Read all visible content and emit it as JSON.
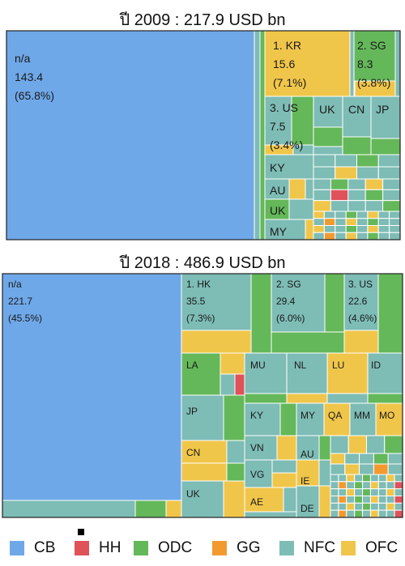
{
  "colors": {
    "CB": "#6fa8e8",
    "HH": "#e0525a",
    "ODC": "#64b85a",
    "GG": "#f29a30",
    "NFC": "#7ebcb6",
    "OFC": "#f0c64a"
  },
  "legend": [
    {
      "key": "CB",
      "label": "CB"
    },
    {
      "key": "HH",
      "label": "HH"
    },
    {
      "key": "ODC",
      "label": "ODC"
    },
    {
      "key": "GG",
      "label": "GG"
    },
    {
      "key": "NFC",
      "label": "NFC"
    },
    {
      "key": "OFC",
      "label": "OFC"
    }
  ],
  "chart_data": [
    {
      "type": "treemap",
      "title": "ปี 2009 : 217.9 USD bn",
      "total_usd_bn": 217.9,
      "cells": [
        {
          "name": "n/a",
          "category": "CB",
          "lines": [
            "n/a",
            "143.4",
            "(65.8%)"
          ],
          "value": 143.4,
          "share": "(65.8%)"
        },
        {
          "name": "1. KR",
          "category": "OFC",
          "lines": [
            "1. KR",
            "15.6",
            "(7.1%)"
          ],
          "value": 15.6,
          "share": "(7.1%)"
        },
        {
          "name": "2. SG",
          "category": "ODC",
          "lines": [
            "2. SG",
            "8.3",
            "(3.8%)"
          ],
          "value": 8.3,
          "share": "(3.8%)"
        },
        {
          "name": "3. US",
          "category": "NFC",
          "lines": [
            "3. US",
            "7.5",
            "(3.4%)"
          ],
          "value": 7.5,
          "share": "(3.4%)"
        },
        {
          "name": "UK",
          "category": "NFC",
          "lines": [
            "UK"
          ]
        },
        {
          "name": "CN",
          "category": "NFC",
          "lines": [
            "CN"
          ]
        },
        {
          "name": "JP",
          "category": "NFC",
          "lines": [
            "JP"
          ]
        },
        {
          "name": "KY",
          "category": "NFC",
          "lines": [
            "KY"
          ]
        },
        {
          "name": "AU",
          "category": "NFC",
          "lines": [
            "AU"
          ]
        },
        {
          "name": "UK",
          "category": "ODC",
          "lines": [
            "UK"
          ]
        },
        {
          "name": "MY",
          "category": "NFC",
          "lines": [
            "MY"
          ]
        }
      ]
    },
    {
      "type": "treemap",
      "title": "ปี 2018 : 486.9 USD bn",
      "total_usd_bn": 486.9,
      "cells": [
        {
          "name": "n/a",
          "category": "CB",
          "lines": [
            "n/a",
            "221.7",
            "(45.5%)"
          ],
          "value": 221.7,
          "share": "(45.5%)"
        },
        {
          "name": "1. HK",
          "category": "NFC",
          "lines": [
            "1. HK",
            "35.5",
            "(7.3%)"
          ],
          "value": 35.5,
          "share": "(7.3%)"
        },
        {
          "name": "2. SG",
          "category": "NFC",
          "lines": [
            "2. SG",
            "29.4",
            "(6.0%)"
          ],
          "value": 29.4,
          "share": "(6.0%)"
        },
        {
          "name": "3. US",
          "category": "NFC",
          "lines": [
            "3. US",
            "22.6",
            "(4.6%)"
          ],
          "value": 22.6,
          "share": "(4.6%)"
        },
        {
          "name": "LA",
          "category": "ODC",
          "lines": [
            "LA"
          ]
        },
        {
          "name": "MU",
          "category": "NFC",
          "lines": [
            "MU"
          ]
        },
        {
          "name": "NL",
          "category": "NFC",
          "lines": [
            "NL"
          ]
        },
        {
          "name": "LU",
          "category": "OFC",
          "lines": [
            "LU"
          ]
        },
        {
          "name": "ID",
          "category": "NFC",
          "lines": [
            "ID"
          ]
        },
        {
          "name": "JP",
          "category": "NFC",
          "lines": [
            "JP"
          ]
        },
        {
          "name": "KY",
          "category": "NFC",
          "lines": [
            "KY"
          ]
        },
        {
          "name": "MY",
          "category": "NFC",
          "lines": [
            "MY"
          ]
        },
        {
          "name": "QA",
          "category": "OFC",
          "lines": [
            "QA"
          ]
        },
        {
          "name": "MM",
          "category": "NFC",
          "lines": [
            "MM"
          ]
        },
        {
          "name": "MO",
          "category": "OFC",
          "lines": [
            "MO"
          ]
        },
        {
          "name": "CN",
          "category": "OFC",
          "lines": [
            "CN"
          ]
        },
        {
          "name": "VN",
          "category": "NFC",
          "lines": [
            "VN"
          ]
        },
        {
          "name": "AU",
          "category": "NFC",
          "lines": [
            "AU"
          ]
        },
        {
          "name": "VG",
          "category": "NFC",
          "lines": [
            "VG"
          ]
        },
        {
          "name": "IE",
          "category": "OFC",
          "lines": [
            "IE"
          ]
        },
        {
          "name": "UK",
          "category": "NFC",
          "lines": [
            "UK"
          ]
        },
        {
          "name": "AE",
          "category": "OFC",
          "lines": [
            "AE"
          ]
        },
        {
          "name": "DE",
          "category": "NFC",
          "lines": [
            "DE"
          ]
        }
      ]
    }
  ]
}
